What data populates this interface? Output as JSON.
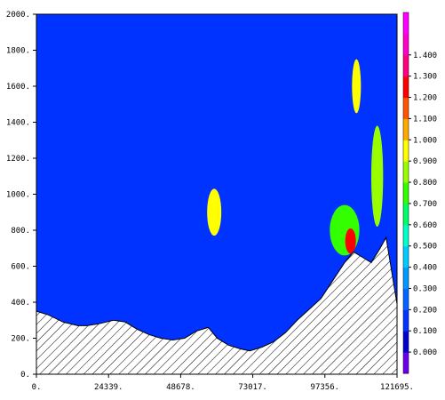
{
  "chart_data": {
    "type": "contour",
    "title": "",
    "xlabel": "",
    "ylabel": "",
    "xlim": [
      0,
      121695
    ],
    "ylim": [
      0,
      2000
    ],
    "x_ticks": [
      "0.",
      "24339.",
      "48678.",
      "73017.",
      "97356.",
      "121695."
    ],
    "x_tick_values": [
      0,
      24339,
      48678,
      73017,
      97356,
      121695
    ],
    "y_ticks": [
      "0.",
      "200.",
      "400.",
      "600.",
      "800.",
      "1000.",
      "1200.",
      "1400.",
      "1600.",
      "1800.",
      "2000."
    ],
    "y_tick_values": [
      0,
      200,
      400,
      600,
      800,
      1000,
      1200,
      1400,
      1600,
      1800,
      2000
    ],
    "colorbar": {
      "labels": [
        "0.000",
        "0.100",
        "0.200",
        "0.300",
        "0.400",
        "0.500",
        "0.600",
        "0.700",
        "0.800",
        "0.900",
        "1.000",
        "1.100",
        "1.200",
        "1.300",
        "1.400"
      ],
      "values": [
        0,
        0.1,
        0.2,
        0.3,
        0.4,
        0.5,
        0.6,
        0.7,
        0.8,
        0.9,
        1.0,
        1.1,
        1.2,
        1.3,
        1.4
      ],
      "colors": [
        "#6a00e8",
        "#0000cc",
        "#0033ff",
        "#0066ff",
        "#0099ff",
        "#00ccff",
        "#00ffcc",
        "#00ff66",
        "#33ff00",
        "#99ff00",
        "#ffff00",
        "#ffaa00",
        "#ff5500",
        "#ff0000",
        "#ff0080",
        "#ff00cc",
        "#ff00ff"
      ]
    },
    "background_level": "0.100-0.200",
    "terrain": {
      "fill": "hatched",
      "x": [
        0,
        4000,
        9000,
        14000,
        17000,
        21000,
        26000,
        30000,
        34000,
        38000,
        42000,
        46000,
        50000,
        54000,
        58000,
        61000,
        65000,
        69000,
        72000,
        76000,
        80000,
        84000,
        88000,
        92000,
        96000,
        100000,
        104000,
        107000,
        110000,
        113000,
        116000,
        118000,
        121695
      ],
      "y": [
        350,
        330,
        290,
        270,
        270,
        280,
        300,
        290,
        250,
        220,
        200,
        190,
        200,
        240,
        260,
        200,
        160,
        140,
        130,
        150,
        180,
        230,
        300,
        360,
        420,
        520,
        620,
        680,
        650,
        620,
        700,
        760,
        390
      ]
    },
    "features": [
      {
        "level": "0.900-1.000",
        "x": 60000,
        "y": 900,
        "rx": 2400,
        "ry": 130
      },
      {
        "level": "0.700-0.800",
        "x": 104000,
        "y": 800,
        "rx": 5000,
        "ry": 140
      },
      {
        "level": "1.200-1.300",
        "x": 106000,
        "y": 740,
        "rx": 1800,
        "ry": 70
      },
      {
        "level": "0.900-1.000",
        "x": 108000,
        "y": 1600,
        "rx": 1500,
        "ry": 150
      },
      {
        "level": "0.800-0.900",
        "x": 115000,
        "y": 1100,
        "rx": 2000,
        "ry": 280
      }
    ]
  }
}
